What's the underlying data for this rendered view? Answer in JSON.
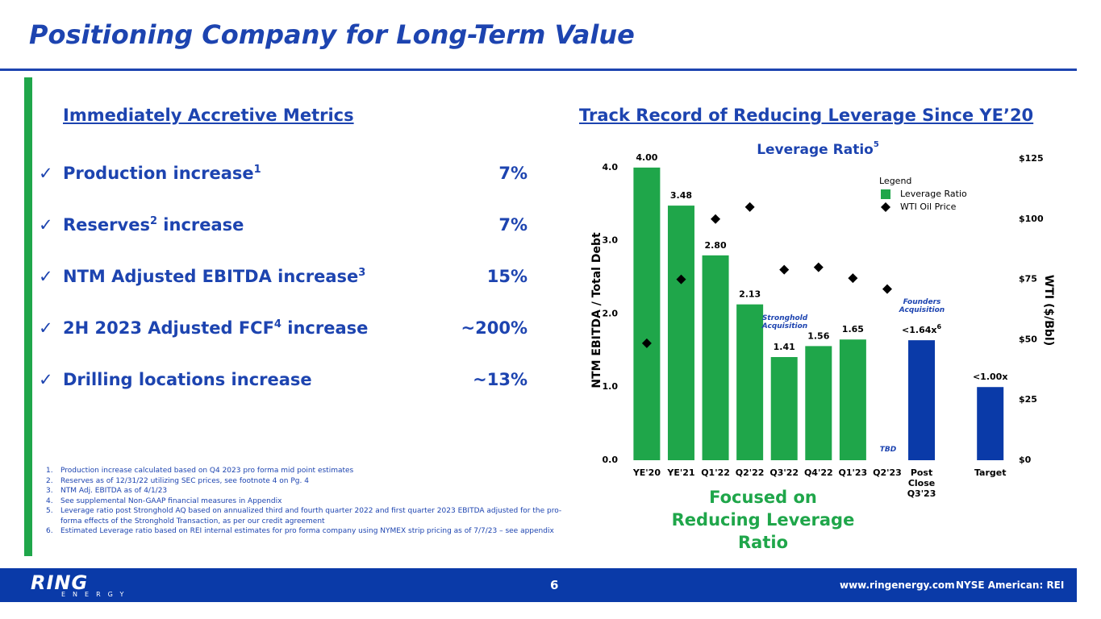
{
  "header": {
    "title": "Positioning Company for Long-Term Value"
  },
  "left": {
    "heading": "Immediately Accretive Metrics",
    "metrics": [
      {
        "parts": [
          {
            "text": "Production increase"
          },
          {
            "sup": "1"
          }
        ],
        "value": "7%"
      },
      {
        "parts": [
          {
            "text": "Reserves"
          },
          {
            "sup": "2"
          },
          {
            "text": " increase"
          }
        ],
        "value": "7%"
      },
      {
        "parts": [
          {
            "text": "NTM Adjusted EBITDA increase"
          },
          {
            "sup": "3"
          }
        ],
        "value": "15%"
      },
      {
        "parts": [
          {
            "text": "2H 2023 Adjusted FCF"
          },
          {
            "sup": "4"
          },
          {
            "text": " increase"
          }
        ],
        "value": "~200%"
      },
      {
        "parts": [
          {
            "text": "Drilling locations increase"
          }
        ],
        "value": "~13%"
      }
    ],
    "footnotes": [
      {
        "num": "1.",
        "text": "Production increase calculated based on Q4 2023 pro forma mid point estimates"
      },
      {
        "num": "2.",
        "text": "Reserves as of 12/31/22 utilizing SEC prices, see footnote 4 on Pg. 4"
      },
      {
        "num": "3.",
        "text": "NTM Adj. EBITDA as of 4/1/23"
      },
      {
        "num": "4.",
        "text": "See supplemental Non-GAAP financial measures in Appendix"
      },
      {
        "num": "5.",
        "text": "Leverage ratio post Stronghold AQ based on annualized third and fourth quarter 2022 and first quarter 2023 EBITDA adjusted for the pro-forma effects of the Stronghold Transaction, as per our credit agreement"
      },
      {
        "num": "6.",
        "text": "Estimated Leverage ratio based on REI internal estimates for pro forma company using NYMEX strip pricing as of 7/7/23 – see appendix"
      }
    ]
  },
  "chart_heading": "Track Record of Reducing Leverage Since YE’20",
  "chart_data": {
    "type": "bar",
    "title": "Leverage Ratio",
    "title_sup": "5",
    "ylabel": "NTM EBITDA / Total Debt",
    "y2label": "WTI ($/Bbl)",
    "categories": [
      "YE'20",
      "YE'21",
      "Q1'22",
      "Q2'22",
      "Q3'22",
      "Q4'22",
      "Q1'23",
      "Q2'23",
      "Post Close Q3'23",
      null,
      "Target"
    ],
    "series": [
      {
        "name": "Leverage Ratio",
        "type": "bar",
        "color": "#1fa64a",
        "colors": [
          "#1fa64a",
          "#1fa64a",
          "#1fa64a",
          "#1fa64a",
          "#1fa64a",
          "#1fa64a",
          "#1fa64a",
          "#1fa64a",
          "#0a3aa8",
          "#0a3aa8",
          "#0a3aa8"
        ],
        "values": [
          4.0,
          3.48,
          2.8,
          2.13,
          1.41,
          1.56,
          1.65,
          null,
          1.64,
          null,
          1.0
        ],
        "value_labels": [
          "4.00",
          "3.48",
          "2.80",
          "2.13",
          "1.41",
          "1.56",
          "1.65",
          null,
          "<1.64x",
          null,
          "<1.00x"
        ],
        "value_label_sups": [
          null,
          null,
          null,
          null,
          null,
          null,
          null,
          null,
          "6",
          null,
          null
        ]
      },
      {
        "name": "WTI Oil Price",
        "type": "scatter",
        "color": "#000000",
        "axis": "y2",
        "values": [
          48.5,
          75,
          100,
          105,
          79,
          80,
          75.5,
          71,
          null,
          null,
          null
        ]
      }
    ],
    "ylim": [
      0,
      4.12
    ],
    "yticks": [
      {
        "value": 0,
        "label": "0.0"
      },
      {
        "value": 1,
        "label": "1.0"
      },
      {
        "value": 2,
        "label": "2.0"
      },
      {
        "value": 3,
        "label": "3.0"
      },
      {
        "value": 4,
        "label": "4.0"
      }
    ],
    "y2lim": [
      0,
      125
    ],
    "y2ticks": [
      {
        "value": 0,
        "label": "$0"
      },
      {
        "value": 25,
        "label": "$25"
      },
      {
        "value": 50,
        "label": "$50"
      },
      {
        "value": 75,
        "label": "$75"
      },
      {
        "value": 100,
        "label": "$100"
      },
      {
        "value": 125,
        "label": "$125"
      }
    ],
    "legend": {
      "title": "Legend",
      "position": "top-right"
    },
    "annotations": [
      {
        "text": "Stronghold Acquisition"
      },
      {
        "text": "Founders Acquisition"
      },
      {
        "text": "TBD"
      }
    ],
    "caption": "Focused on Reducing Leverage Ratio"
  },
  "footer": {
    "logo_word": "RING",
    "logo_sub": "ENERGY",
    "page": "6",
    "website": "www.ringenergy.com",
    "ticker": "NYSE American: REI"
  }
}
